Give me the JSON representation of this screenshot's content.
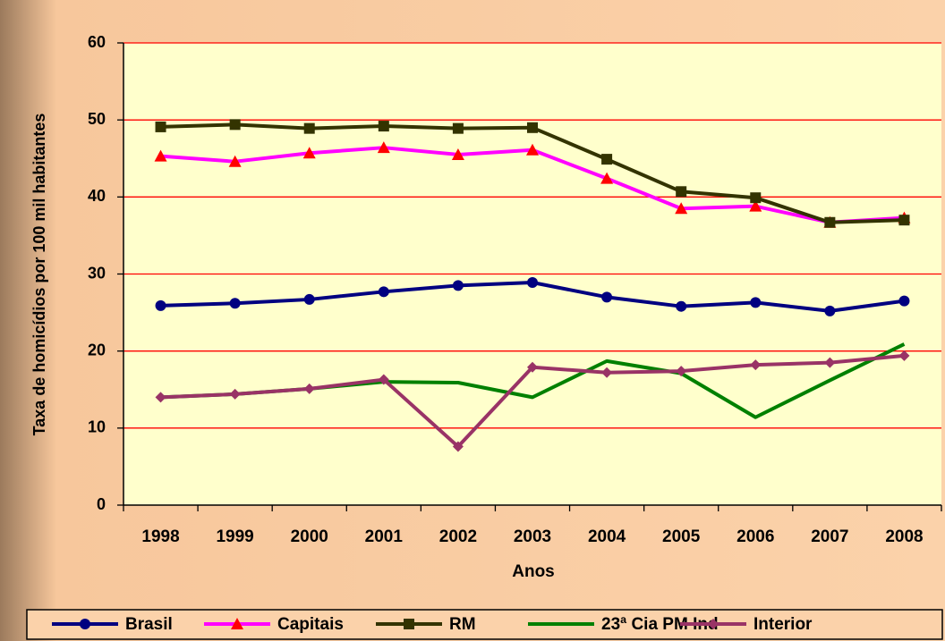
{
  "chart_data": {
    "type": "line",
    "xlabel": "Anos",
    "ylabel": "Taxa de homicídios por 100 mil habitantes",
    "categories": [
      "1998",
      "1999",
      "2000",
      "2001",
      "2002",
      "2003",
      "2004",
      "2005",
      "2006",
      "2007",
      "2008"
    ],
    "series": [
      {
        "name": "Brasil",
        "color": "#000080",
        "marker": "circle",
        "values": [
          25.9,
          26.2,
          26.7,
          27.7,
          28.5,
          28.9,
          27.0,
          25.8,
          26.3,
          25.2,
          26.5
        ]
      },
      {
        "name": "Capitais",
        "color": "#ff00ff",
        "marker": "triangle",
        "values": [
          45.3,
          44.6,
          45.7,
          46.4,
          45.5,
          46.1,
          42.4,
          38.5,
          38.8,
          36.7,
          37.3
        ]
      },
      {
        "name": "RM",
        "color": "#333300",
        "marker": "square",
        "values": [
          49.1,
          49.4,
          48.9,
          49.2,
          48.9,
          49.0,
          44.9,
          40.7,
          39.9,
          36.7,
          37.0
        ]
      },
      {
        "name": "23ª Cia PM Ind",
        "color": "#008000",
        "marker": "none",
        "values": [
          14.0,
          14.4,
          15.1,
          16.0,
          15.9,
          14.0,
          18.7,
          17.1,
          11.4,
          16.2,
          20.9
        ]
      },
      {
        "name": "Interior",
        "color": "#993366",
        "marker": "diamond",
        "values": [
          14.0,
          14.4,
          15.1,
          16.3,
          7.6,
          17.9,
          17.2,
          17.4,
          18.2,
          18.5,
          19.4
        ]
      }
    ],
    "ylim": [
      0,
      60
    ],
    "yticks": [
      0,
      10,
      20,
      30,
      40,
      50,
      60
    ],
    "grid": true,
    "grid_color": "#ff0000",
    "plot_background": "#ffffcc",
    "legend": "bottom"
  }
}
